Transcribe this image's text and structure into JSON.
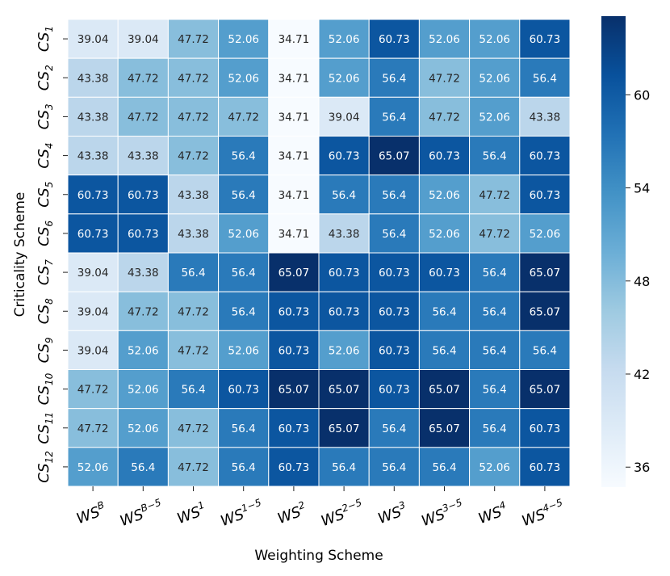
{
  "chart_data": {
    "type": "heatmap",
    "title": "",
    "xlabel": "Weighting Scheme",
    "ylabel": "Criticality Scheme",
    "x_categories": [
      {
        "base": "WS",
        "sub": "B"
      },
      {
        "base": "WS",
        "sub": "B−5"
      },
      {
        "base": "WS",
        "sub": "1"
      },
      {
        "base": "WS",
        "sub": "1−5"
      },
      {
        "base": "WS",
        "sub": "2"
      },
      {
        "base": "WS",
        "sub": "2−5"
      },
      {
        "base": "WS",
        "sub": "3"
      },
      {
        "base": "WS",
        "sub": "3−5"
      },
      {
        "base": "WS",
        "sub": "4"
      },
      {
        "base": "WS",
        "sub": "4−5"
      }
    ],
    "y_categories": [
      {
        "base": "CS",
        "sub": "1"
      },
      {
        "base": "CS",
        "sub": "2"
      },
      {
        "base": "CS",
        "sub": "3"
      },
      {
        "base": "CS",
        "sub": "4"
      },
      {
        "base": "CS",
        "sub": "5"
      },
      {
        "base": "CS",
        "sub": "6"
      },
      {
        "base": "CS",
        "sub": "7"
      },
      {
        "base": "CS",
        "sub": "8"
      },
      {
        "base": "CS",
        "sub": "9"
      },
      {
        "base": "CS",
        "sub": "10"
      },
      {
        "base": "CS",
        "sub": "11"
      },
      {
        "base": "CS",
        "sub": "12"
      }
    ],
    "values": [
      [
        "39.04",
        "39.04",
        "47.72",
        "52.06",
        "34.71",
        "52.06",
        "60.73",
        "52.06",
        "52.06",
        "60.73"
      ],
      [
        "43.38",
        "47.72",
        "47.72",
        "52.06",
        "34.71",
        "52.06",
        "56.4",
        "47.72",
        "52.06",
        "56.4"
      ],
      [
        "43.38",
        "47.72",
        "47.72",
        "47.72",
        "34.71",
        "39.04",
        "56.4",
        "47.72",
        "52.06",
        "43.38"
      ],
      [
        "43.38",
        "43.38",
        "47.72",
        "56.4",
        "34.71",
        "60.73",
        "65.07",
        "60.73",
        "56.4",
        "60.73"
      ],
      [
        "60.73",
        "60.73",
        "43.38",
        "56.4",
        "34.71",
        "56.4",
        "56.4",
        "52.06",
        "47.72",
        "60.73"
      ],
      [
        "60.73",
        "60.73",
        "43.38",
        "52.06",
        "34.71",
        "43.38",
        "56.4",
        "52.06",
        "47.72",
        "52.06"
      ],
      [
        "39.04",
        "43.38",
        "56.4",
        "56.4",
        "65.07",
        "60.73",
        "60.73",
        "60.73",
        "56.4",
        "65.07"
      ],
      [
        "39.04",
        "47.72",
        "47.72",
        "56.4",
        "60.73",
        "60.73",
        "60.73",
        "56.4",
        "56.4",
        "65.07"
      ],
      [
        "39.04",
        "52.06",
        "47.72",
        "52.06",
        "60.73",
        "52.06",
        "60.73",
        "56.4",
        "56.4",
        "56.4"
      ],
      [
        "47.72",
        "52.06",
        "56.4",
        "60.73",
        "65.07",
        "65.07",
        "60.73",
        "65.07",
        "56.4",
        "65.07"
      ],
      [
        "47.72",
        "52.06",
        "47.72",
        "56.4",
        "60.73",
        "65.07",
        "56.4",
        "65.07",
        "56.4",
        "60.73"
      ],
      [
        "52.06",
        "56.4",
        "47.72",
        "56.4",
        "60.73",
        "56.4",
        "56.4",
        "56.4",
        "52.06",
        "60.73"
      ]
    ],
    "colorbar": {
      "colormap": "Blues",
      "range": [
        34.71,
        65.07
      ],
      "ticks": [
        "36",
        "42",
        "48",
        "54",
        "60"
      ]
    },
    "colors": {
      "low": "#f7fbff",
      "high": "#08306b",
      "cell_border": "#ffffff",
      "dark_text": "#262626",
      "light_text": "#ffffff"
    }
  }
}
